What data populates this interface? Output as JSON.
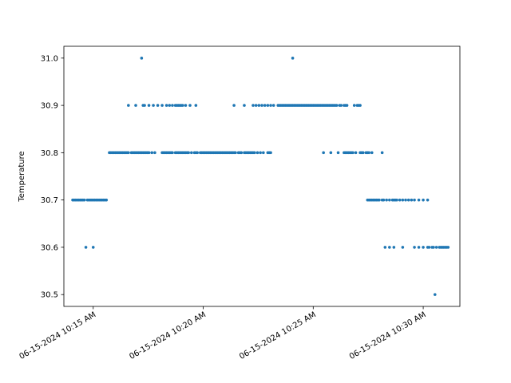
{
  "chart_data": {
    "type": "scatter",
    "title": "",
    "xlabel": "",
    "ylabel": "Temperature",
    "x_is_datetime": true,
    "xlim": [
      "06-15-2024 10:13:40 AM",
      "06-15-2024 10:31:40 AM"
    ],
    "ylim": [
      30.475,
      31.025
    ],
    "grid": false,
    "legend": "none",
    "marker_color": "#1f77b4",
    "x_ticks": [
      "06-15-2024 10:15 AM",
      "06-15-2024 10:20 AM",
      "06-15-2024 10:25 AM",
      "06-15-2024 10:30 AM"
    ],
    "x_tick_times": [
      "10:15:00",
      "10:20:00",
      "10:25:00",
      "10:30:00"
    ],
    "y_ticks": [
      30.5,
      30.6,
      30.7,
      30.8,
      30.9,
      31.0
    ],
    "y_tick_labels": [
      "30.5",
      "30.6",
      "30.7",
      "30.8",
      "30.9",
      "31.0"
    ],
    "series": [
      {
        "x": [
          "10:14:04",
          "10:14:08",
          "10:14:12",
          "10:14:16",
          "10:14:20",
          "10:14:24",
          "10:14:28",
          "10:14:32",
          "10:14:36",
          "10:14:44",
          "10:14:48",
          "10:14:52",
          "10:14:56",
          "10:15:00",
          "10:15:04",
          "10:15:08",
          "10:15:12",
          "10:15:16",
          "10:15:20",
          "10:15:24",
          "10:15:28",
          "10:15:32",
          "10:15:36",
          "10:15:44",
          "10:15:48",
          "10:15:52",
          "10:15:56",
          "10:16:00",
          "10:16:04",
          "10:16:08",
          "10:16:12",
          "10:16:16",
          "10:16:20",
          "10:16:24",
          "10:16:28",
          "10:16:32",
          "10:16:36",
          "10:16:44",
          "10:16:48",
          "10:16:52",
          "10:16:56",
          "10:17:00",
          "10:17:04",
          "10:17:08",
          "10:17:12",
          "10:17:16",
          "10:17:20",
          "10:17:24",
          "10:17:28",
          "10:17:32",
          "10:17:40",
          "10:17:48",
          "10:18:08",
          "10:18:12",
          "10:18:16",
          "10:18:20",
          "10:18:24",
          "10:18:28",
          "10:18:32",
          "10:18:36",
          "10:18:44",
          "10:18:48",
          "10:18:52",
          "10:18:56",
          "10:19:00",
          "10:19:04",
          "10:19:08",
          "10:19:12",
          "10:19:16",
          "10:19:20",
          "10:19:28",
          "10:19:36",
          "10:19:40",
          "10:19:44",
          "10:19:52",
          "10:19:56",
          "10:20:00",
          "10:20:04",
          "10:20:08",
          "10:20:12",
          "10:20:16",
          "10:20:20",
          "10:20:24",
          "10:20:28",
          "10:20:32",
          "10:20:36",
          "10:20:40",
          "10:20:44",
          "10:20:48",
          "10:20:52",
          "10:20:56",
          "10:21:00",
          "10:21:04",
          "10:21:08",
          "10:21:12",
          "10:21:16",
          "10:21:20",
          "10:21:24",
          "10:21:28",
          "10:21:36",
          "10:21:40",
          "10:21:44",
          "10:21:52",
          "10:21:56",
          "10:22:00",
          "10:22:04",
          "10:22:08",
          "10:22:12",
          "10:22:16",
          "10:22:20",
          "10:22:28",
          "10:22:36",
          "10:22:44",
          "10:22:56",
          "10:23:00",
          "10:23:04",
          "10:16:36",
          "10:16:56",
          "10:17:16",
          "10:17:20",
          "10:17:32",
          "10:17:44",
          "10:17:56",
          "10:18:08",
          "10:18:20",
          "10:18:28",
          "10:18:36",
          "10:18:44",
          "10:18:48",
          "10:18:52",
          "10:18:56",
          "10:19:00",
          "10:19:04",
          "10:19:12",
          "10:19:24",
          "10:19:40",
          "10:21:24",
          "10:21:52",
          "10:22:16",
          "10:22:24",
          "10:22:32",
          "10:22:40",
          "10:22:48",
          "10:22:56",
          "10:23:04",
          "10:23:12",
          "10:23:24",
          "10:23:28",
          "10:23:32",
          "10:23:36",
          "10:23:40",
          "10:23:44",
          "10:23:48",
          "10:23:52",
          "10:23:56",
          "10:24:00",
          "10:24:04",
          "10:24:08",
          "10:24:12",
          "10:24:16",
          "10:24:20",
          "10:24:24",
          "10:24:28",
          "10:24:32",
          "10:24:36",
          "10:24:40",
          "10:24:44",
          "10:24:48",
          "10:24:52",
          "10:24:56",
          "10:25:00",
          "10:25:04",
          "10:25:08",
          "10:25:12",
          "10:25:16",
          "10:25:20",
          "10:25:24",
          "10:25:28",
          "10:25:32",
          "10:25:36",
          "10:25:40",
          "10:25:44",
          "10:25:48",
          "10:25:52",
          "10:25:56",
          "10:26:00",
          "10:26:04",
          "10:26:12",
          "10:26:16",
          "10:26:24",
          "10:26:28",
          "10:26:32",
          "10:26:52",
          "10:27:00",
          "10:27:04",
          "10:27:08",
          "10:17:12",
          "10:24:04",
          "10:25:28",
          "10:25:48",
          "10:26:08",
          "10:26:24",
          "10:26:28",
          "10:26:32",
          "10:26:36",
          "10:26:40",
          "10:26:44",
          "10:26:48",
          "10:26:56",
          "10:27:08",
          "10:27:12",
          "10:27:16",
          "10:27:24",
          "10:27:28",
          "10:27:32",
          "10:27:40",
          "10:28:08",
          "10:27:28",
          "10:27:32",
          "10:27:36",
          "10:27:40",
          "10:27:44",
          "10:27:48",
          "10:27:52",
          "10:27:56",
          "10:28:00",
          "10:28:08",
          "10:28:12",
          "10:28:20",
          "10:28:28",
          "10:28:36",
          "10:28:40",
          "10:28:44",
          "10:28:48",
          "10:28:56",
          "10:29:04",
          "10:29:12",
          "10:29:20",
          "10:29:28",
          "10:29:36",
          "10:29:48",
          "10:30:00",
          "10:30:12",
          "10:14:40",
          "10:15:00",
          "10:28:16",
          "10:28:28",
          "10:28:40",
          "10:29:04",
          "10:29:36",
          "10:29:48",
          "10:30:00",
          "10:30:12",
          "10:30:16",
          "10:30:24",
          "10:30:28",
          "10:30:36",
          "10:30:44",
          "10:30:48",
          "10:30:52",
          "10:30:56",
          "10:31:00",
          "10:31:04",
          "10:31:08",
          "10:30:32"
        ],
        "y": [
          30.7,
          30.7,
          30.7,
          30.7,
          30.7,
          30.7,
          30.7,
          30.7,
          30.7,
          30.7,
          30.7,
          30.7,
          30.7,
          30.7,
          30.7,
          30.7,
          30.7,
          30.7,
          30.7,
          30.7,
          30.7,
          30.7,
          30.7,
          30.8,
          30.8,
          30.8,
          30.8,
          30.8,
          30.8,
          30.8,
          30.8,
          30.8,
          30.8,
          30.8,
          30.8,
          30.8,
          30.8,
          30.8,
          30.8,
          30.8,
          30.8,
          30.8,
          30.8,
          30.8,
          30.8,
          30.8,
          30.8,
          30.8,
          30.8,
          30.8,
          30.8,
          30.8,
          30.8,
          30.8,
          30.8,
          30.8,
          30.8,
          30.8,
          30.8,
          30.8,
          30.8,
          30.8,
          30.8,
          30.8,
          30.8,
          30.8,
          30.8,
          30.8,
          30.8,
          30.8,
          30.8,
          30.8,
          30.8,
          30.8,
          30.8,
          30.8,
          30.8,
          30.8,
          30.8,
          30.8,
          30.8,
          30.8,
          30.8,
          30.8,
          30.8,
          30.8,
          30.8,
          30.8,
          30.8,
          30.8,
          30.8,
          30.8,
          30.8,
          30.8,
          30.8,
          30.8,
          30.8,
          30.8,
          30.8,
          30.8,
          30.8,
          30.8,
          30.8,
          30.8,
          30.8,
          30.8,
          30.8,
          30.8,
          30.8,
          30.8,
          30.8,
          30.8,
          30.8,
          30.8,
          30.8,
          30.8,
          30.9,
          30.9,
          30.9,
          30.9,
          30.9,
          30.9,
          30.9,
          30.9,
          30.9,
          30.9,
          30.9,
          30.9,
          30.9,
          30.9,
          30.9,
          30.9,
          30.9,
          30.9,
          30.9,
          30.9,
          30.9,
          30.9,
          30.9,
          30.9,
          30.9,
          30.9,
          30.9,
          30.9,
          30.9,
          30.9,
          30.9,
          30.9,
          30.9,
          30.9,
          30.9,
          30.9,
          30.9,
          30.9,
          30.9,
          30.9,
          30.9,
          30.9,
          30.9,
          30.9,
          30.9,
          30.9,
          30.9,
          30.9,
          30.9,
          30.9,
          30.9,
          30.9,
          30.9,
          30.9,
          30.9,
          30.9,
          30.9,
          30.9,
          30.9,
          30.9,
          30.9,
          30.9,
          30.9,
          30.9,
          30.9,
          30.9,
          30.9,
          30.9,
          30.9,
          30.9,
          30.9,
          30.9,
          30.9,
          30.9,
          30.9,
          30.9,
          30.9,
          30.9,
          30.9,
          30.9,
          31.0,
          31.0,
          30.8,
          30.8,
          30.8,
          30.8,
          30.8,
          30.8,
          30.8,
          30.8,
          30.8,
          30.8,
          30.8,
          30.8,
          30.8,
          30.8,
          30.8,
          30.8,
          30.8,
          30.8,
          30.8,
          30.7,
          30.7,
          30.7,
          30.7,
          30.7,
          30.7,
          30.7,
          30.7,
          30.7,
          30.7,
          30.7,
          30.7,
          30.7,
          30.7,
          30.7,
          30.7,
          30.7,
          30.7,
          30.7,
          30.7,
          30.7,
          30.7,
          30.7,
          30.7,
          30.7,
          30.7,
          30.6,
          30.6,
          30.6,
          30.6,
          30.6,
          30.6,
          30.6,
          30.6,
          30.6,
          30.6,
          30.6,
          30.6,
          30.6,
          30.6,
          30.6,
          30.6,
          30.6,
          30.6,
          30.6,
          30.6,
          30.6,
          30.5
        ]
      }
    ]
  }
}
